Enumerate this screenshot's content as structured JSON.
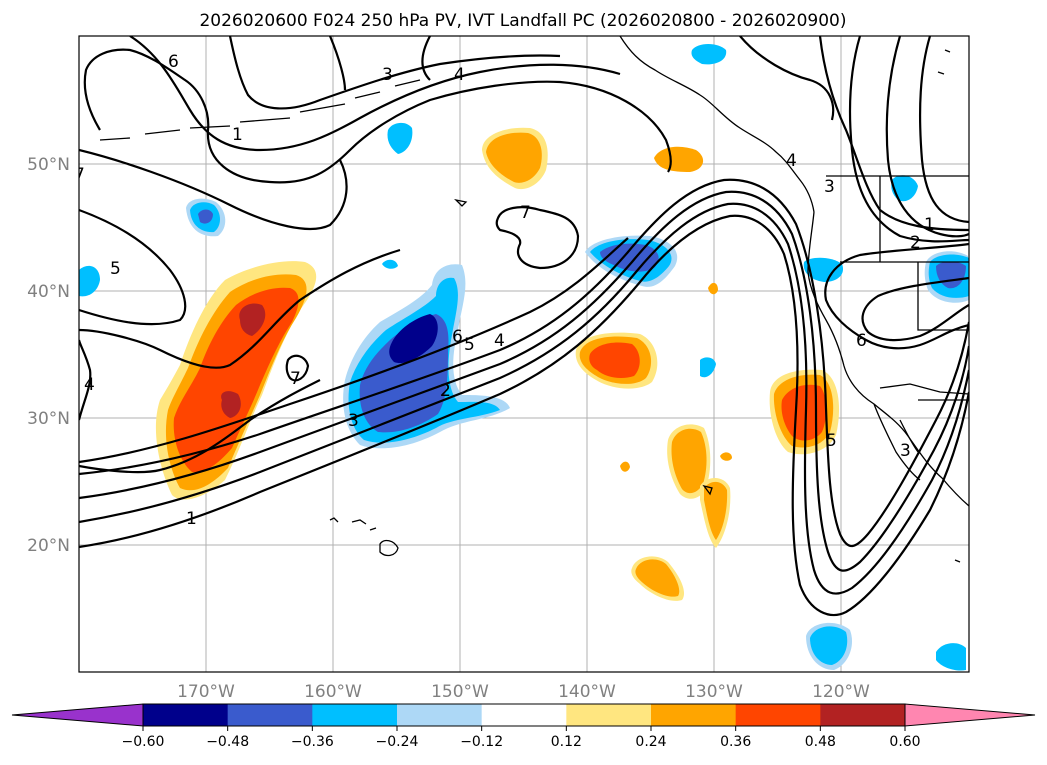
{
  "title": "2026020600 F024 250 hPa PV, IVT Landfall PC (2026020800 - 2026020900)",
  "map": {
    "lat_labels": [
      "50°N",
      "40°N",
      "30°N",
      "20°N"
    ],
    "lon_labels": [
      "170°W",
      "160°W",
      "150°W",
      "140°W",
      "130°W",
      "120°W"
    ],
    "contour_labels": [
      "6",
      "3",
      "4",
      "5",
      "7",
      "4",
      "1",
      "2",
      "6",
      "5",
      "4",
      "3",
      "2",
      "3",
      "7",
      "1",
      "6",
      "5",
      "4",
      "1",
      "2",
      "3",
      "7"
    ]
  },
  "colorbar": {
    "ticks": [
      "−0.60",
      "−0.48",
      "−0.36",
      "−0.24",
      "−0.12",
      "0.12",
      "0.24",
      "0.36",
      "0.48",
      "0.60"
    ],
    "colors": [
      "#9932cc",
      "#00008b",
      "#3a5bcd",
      "#00bfff",
      "#add8f6",
      "#ffffff",
      "#ffe680",
      "#ffa500",
      "#ff4500",
      "#b22222",
      "#ff86b0"
    ]
  },
  "chart_data": {
    "type": "contour-map",
    "title": "2026020600 F024 250 hPa PV, IVT Landfall PC (2026020800 - 2026020900)",
    "lon_range": [
      -180,
      -110
    ],
    "lat_range": [
      10,
      60
    ],
    "filled_field": "IVT Landfall PC",
    "filled_levels": [
      -0.6,
      -0.48,
      -0.36,
      -0.24,
      -0.12,
      0.12,
      0.24,
      0.36,
      0.48,
      0.6
    ],
    "line_field": "250 hPa PV",
    "line_levels": [
      1,
      2,
      3,
      4,
      5,
      6,
      7
    ]
  }
}
